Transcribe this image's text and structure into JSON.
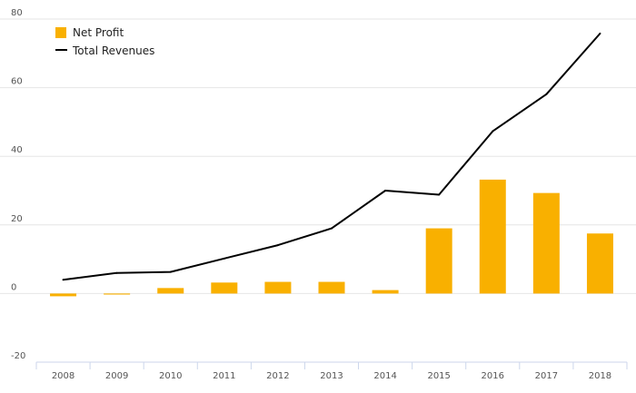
{
  "chart_data": {
    "type": "bar",
    "categories": [
      "2008",
      "2009",
      "2010",
      "2011",
      "2012",
      "2013",
      "2014",
      "2015",
      "2016",
      "2017",
      "2018"
    ],
    "series": [
      {
        "name": "Net Profit",
        "type": "bar",
        "color": "#f9b000",
        "values": [
          -0.8,
          -0.3,
          1.6,
          3.2,
          3.4,
          3.4,
          1.0,
          19.0,
          33.2,
          29.3,
          17.5
        ]
      },
      {
        "name": "Total Revenues",
        "type": "line",
        "color": "#000000",
        "values": [
          4.0,
          6.0,
          6.3,
          10.2,
          14.1,
          19.0,
          30.0,
          28.8,
          47.3,
          58.1,
          75.8
        ]
      }
    ],
    "yticks": [
      "80",
      "60",
      "40",
      "20",
      "0",
      "-20"
    ],
    "ylim": [
      -20,
      80
    ],
    "grid": true,
    "legend": {
      "position": "top-left"
    },
    "title": "",
    "xlabel": "",
    "ylabel": ""
  }
}
